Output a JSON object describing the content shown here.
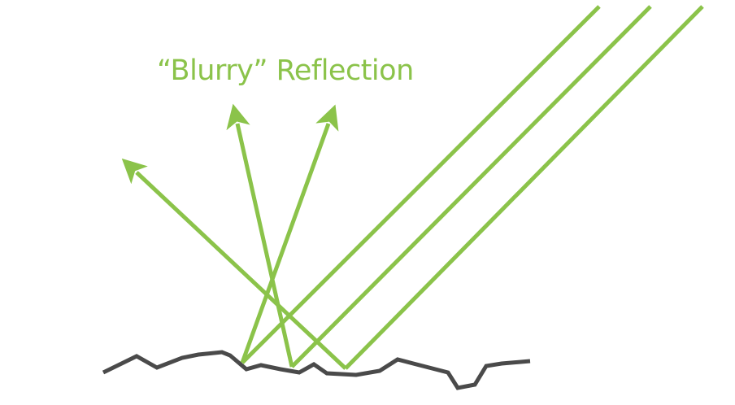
{
  "diagram": {
    "title": "“Blurry” Reflection",
    "colors": {
      "ray": "#8bc34a",
      "surface": "#4a4a4a",
      "background": "#ffffff"
    }
  }
}
